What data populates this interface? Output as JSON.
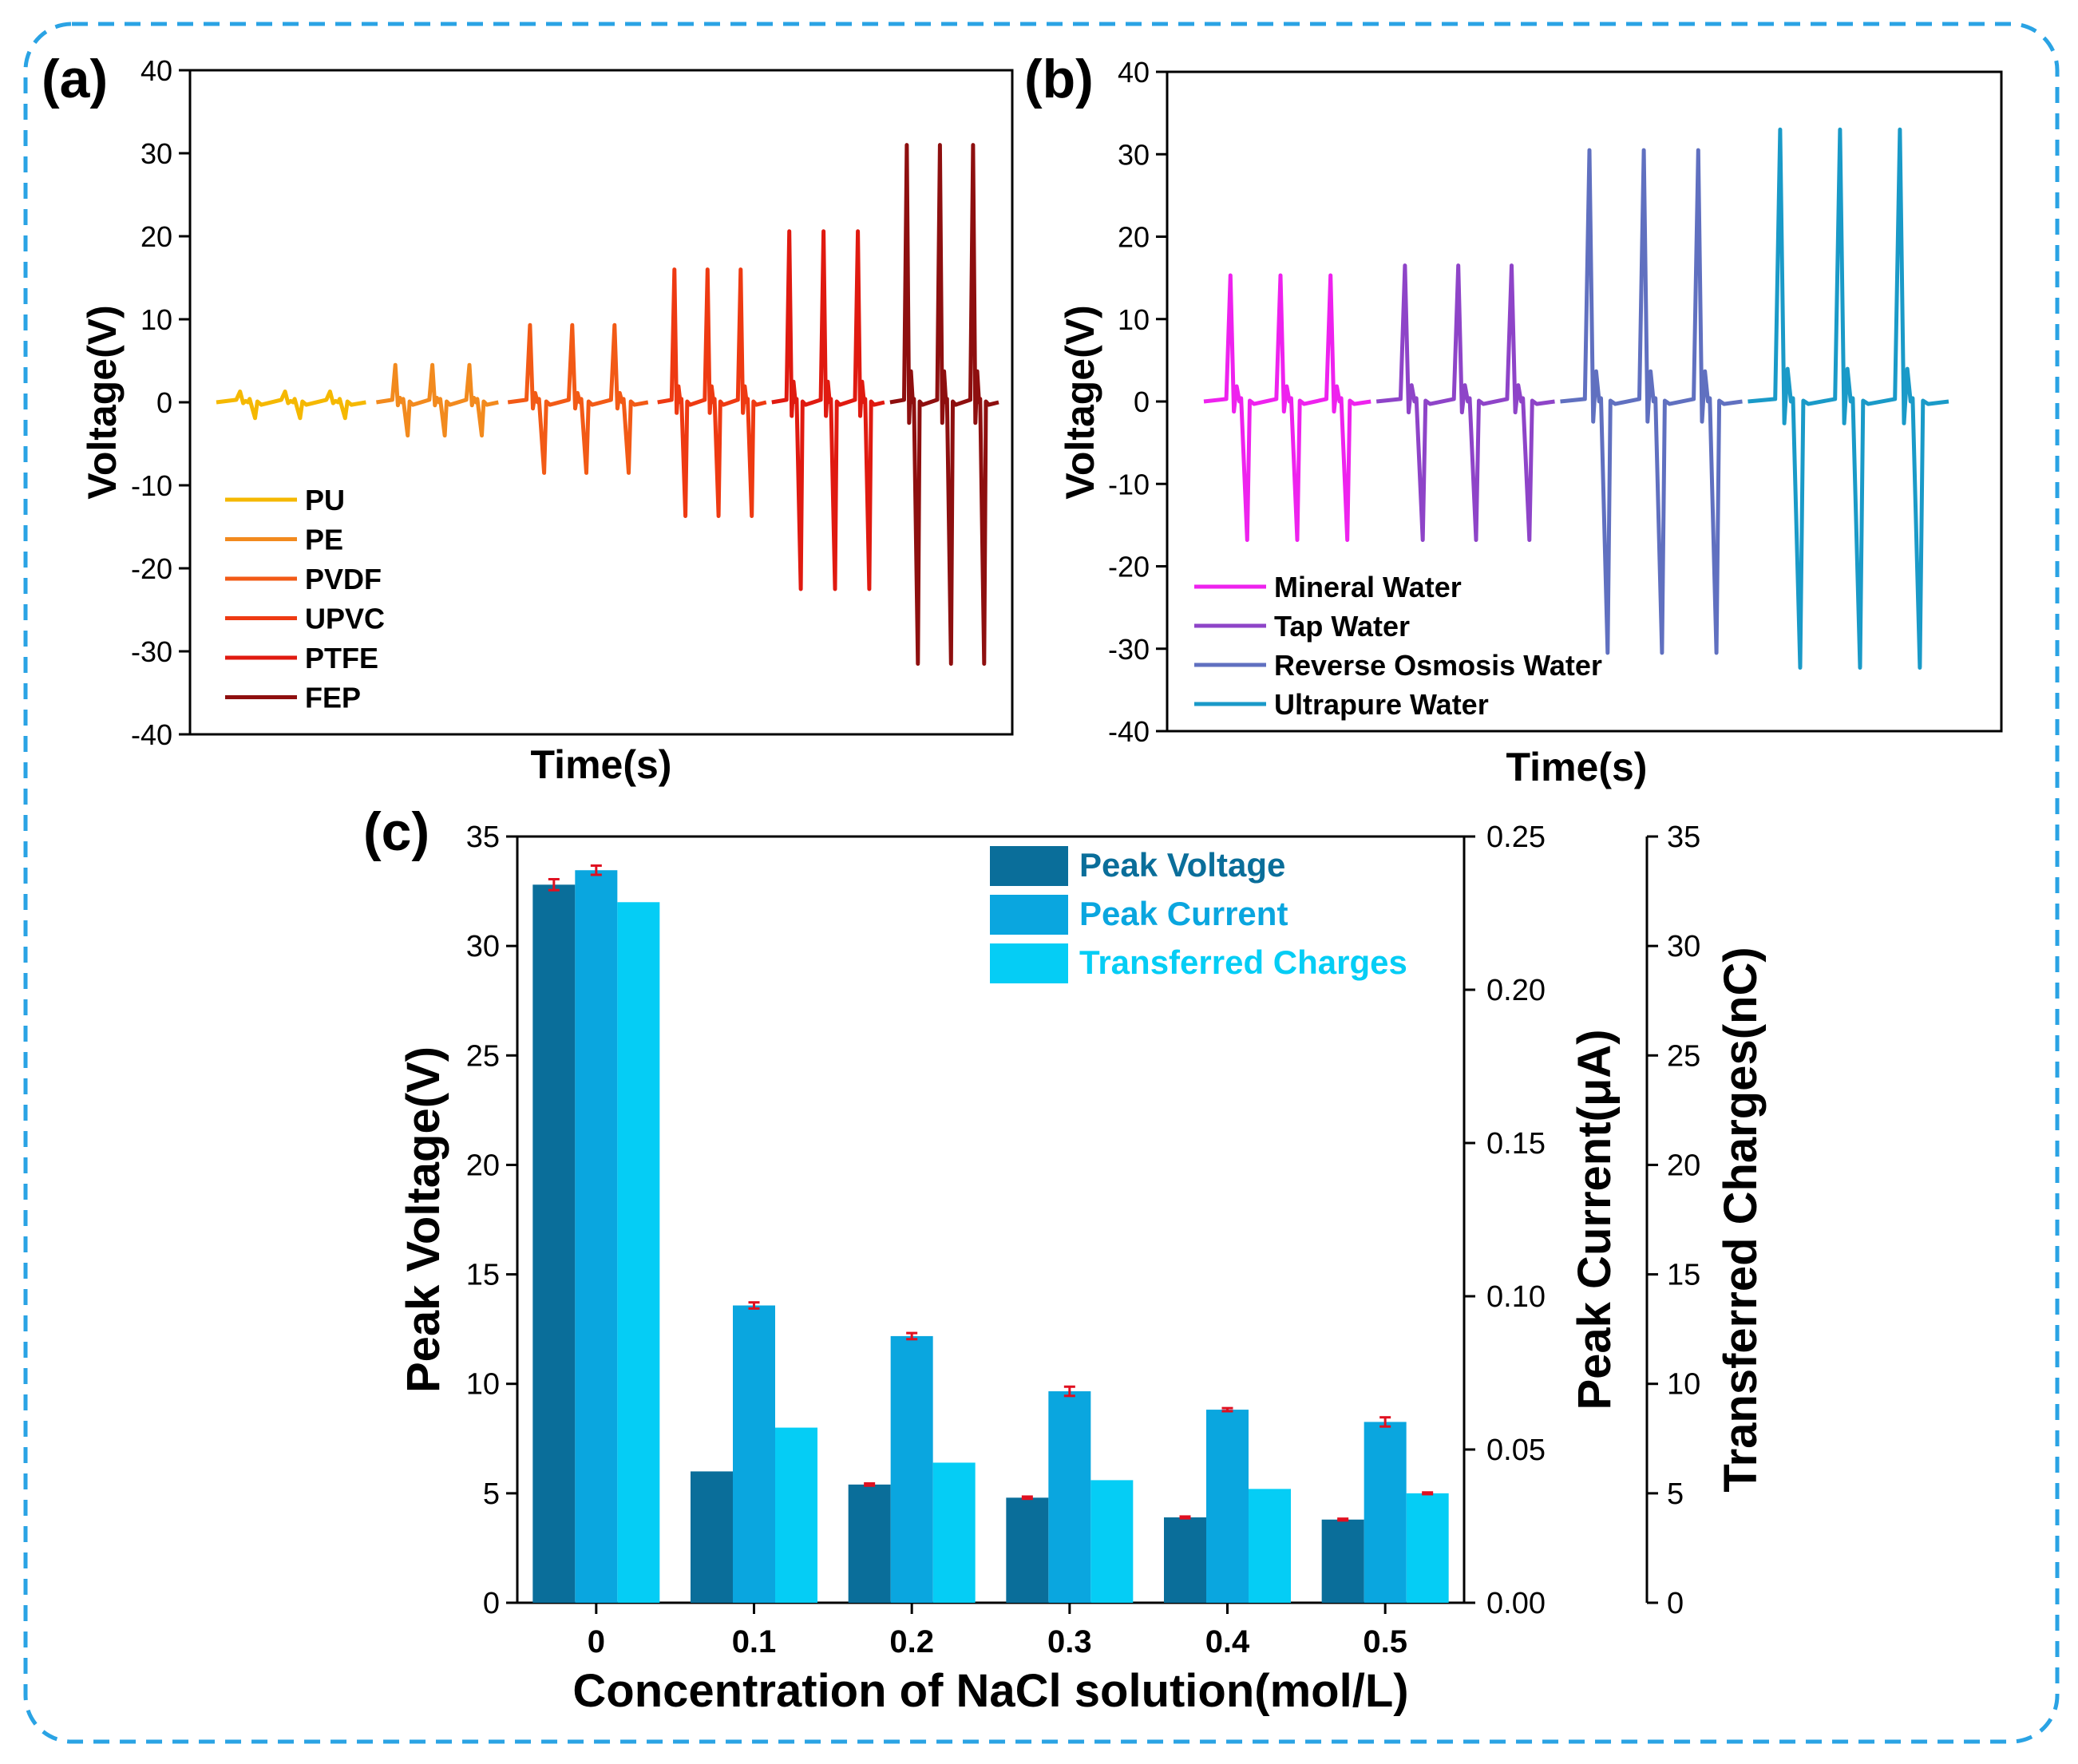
{
  "panel_labels": {
    "a": "(a)",
    "b": "(b)",
    "c": "(c)"
  },
  "chart_data": [
    {
      "id": "a",
      "type": "line",
      "title": "",
      "xlabel": "Time(s)",
      "ylabel": "Voltage(V)",
      "ylim": [
        -40,
        40
      ],
      "yticks": [
        "-40",
        "-30",
        "-20",
        "-10",
        "0",
        "10",
        "20",
        "30",
        "40"
      ],
      "legend_position": "bottom-left",
      "series": [
        {
          "name": "PU",
          "color": "#f5b800",
          "peak": 1.3,
          "trough": -1.9,
          "t_start": 0.0,
          "t_end": 0.197
        },
        {
          "name": "PE",
          "color": "#f28a1e",
          "peak": 4.5,
          "trough": -4.0,
          "t_start": 0.203,
          "t_end": 0.365
        },
        {
          "name": "PVDF",
          "color": "#f25a16",
          "peak": 9.3,
          "trough": -8.5,
          "t_start": 0.37,
          "t_end": 0.555
        },
        {
          "name": "UPVC",
          "color": "#ee3a12",
          "peak": 16.0,
          "trough": -13.7,
          "t_start": 0.56,
          "t_end": 0.705
        },
        {
          "name": "PTFE",
          "color": "#e01a10",
          "peak": 20.6,
          "trough": -22.5,
          "t_start": 0.705,
          "t_end": 0.855
        },
        {
          "name": "FEP",
          "color": "#8e0f0f",
          "peak": 31.0,
          "trough": -31.5,
          "t_start": 0.855,
          "t_end": 1.0
        }
      ]
    },
    {
      "id": "b",
      "type": "line",
      "title": "",
      "xlabel": "Time(s)",
      "ylabel": "Voltage(V)",
      "ylim": [
        -40,
        40
      ],
      "yticks": [
        "-40",
        "-30",
        "-20",
        "-10",
        "0",
        "10",
        "20",
        "30",
        "40"
      ],
      "legend_position": "bottom-left",
      "series": [
        {
          "name": "Mineral Water",
          "color": "#ee22ee",
          "peak": 15.3,
          "trough": -16.8,
          "t_start": 0.0,
          "t_end": 0.23
        },
        {
          "name": "Tap Water",
          "color": "#8e44c8",
          "peak": 16.5,
          "trough": -16.8,
          "t_start": 0.23,
          "t_end": 0.475
        },
        {
          "name": "Reverse Osmosis Water",
          "color": "#6070c0",
          "peak": 30.5,
          "trough": -30.5,
          "t_start": 0.475,
          "t_end": 0.725
        },
        {
          "name": "Ultrapure Water",
          "color": "#1a9ac8",
          "peak": 33.0,
          "trough": -32.3,
          "t_start": 0.725,
          "t_end": 1.0
        }
      ]
    },
    {
      "id": "c",
      "type": "bar",
      "title": "",
      "xlabel": "Concentration of NaCl solution(mol/L)",
      "categories": [
        "0",
        "0.1",
        "0.2",
        "0.3",
        "0.4",
        "0.5"
      ],
      "legend_position": "top-right",
      "axes": {
        "left": {
          "label": "Peak Voltage(V)",
          "ylim": [
            0,
            35
          ],
          "ticks": [
            "0",
            "5",
            "10",
            "15",
            "20",
            "25",
            "30",
            "35"
          ]
        },
        "right1": {
          "label": "Peak Current(μA)",
          "ylim": [
            0,
            0.25
          ],
          "ticks": [
            "0.00",
            "0.05",
            "0.10",
            "0.15",
            "0.20",
            "0.25"
          ]
        },
        "right2": {
          "label": "Transferred Charges(nC)",
          "ylim": [
            0,
            35
          ],
          "ticks": [
            "0",
            "5",
            "10",
            "15",
            "20",
            "25",
            "30",
            "35"
          ]
        }
      },
      "series": [
        {
          "name": "Peak Voltage",
          "axis": "left",
          "color": "#0a6e9a",
          "values": [
            32.8,
            6.0,
            5.4,
            4.8,
            3.9,
            3.8
          ],
          "errors": [
            0.25,
            0,
            0.05,
            0.05,
            0.04,
            0.04
          ]
        },
        {
          "name": "Peak Current",
          "axis": "right1",
          "color": "#0aa6df",
          "values": [
            0.239,
            0.097,
            0.087,
            0.069,
            0.063,
            0.059
          ],
          "errors": [
            0.0015,
            0.001,
            0.001,
            0.0015,
            0.0005,
            0.0015
          ]
        },
        {
          "name": "Transferred Charges",
          "axis": "right2",
          "color": "#05cdf5",
          "values": [
            32.0,
            8.0,
            6.4,
            5.6,
            5.2,
            5.0
          ],
          "errors": [
            0,
            0,
            0,
            0,
            0,
            0.04
          ]
        }
      ]
    }
  ]
}
